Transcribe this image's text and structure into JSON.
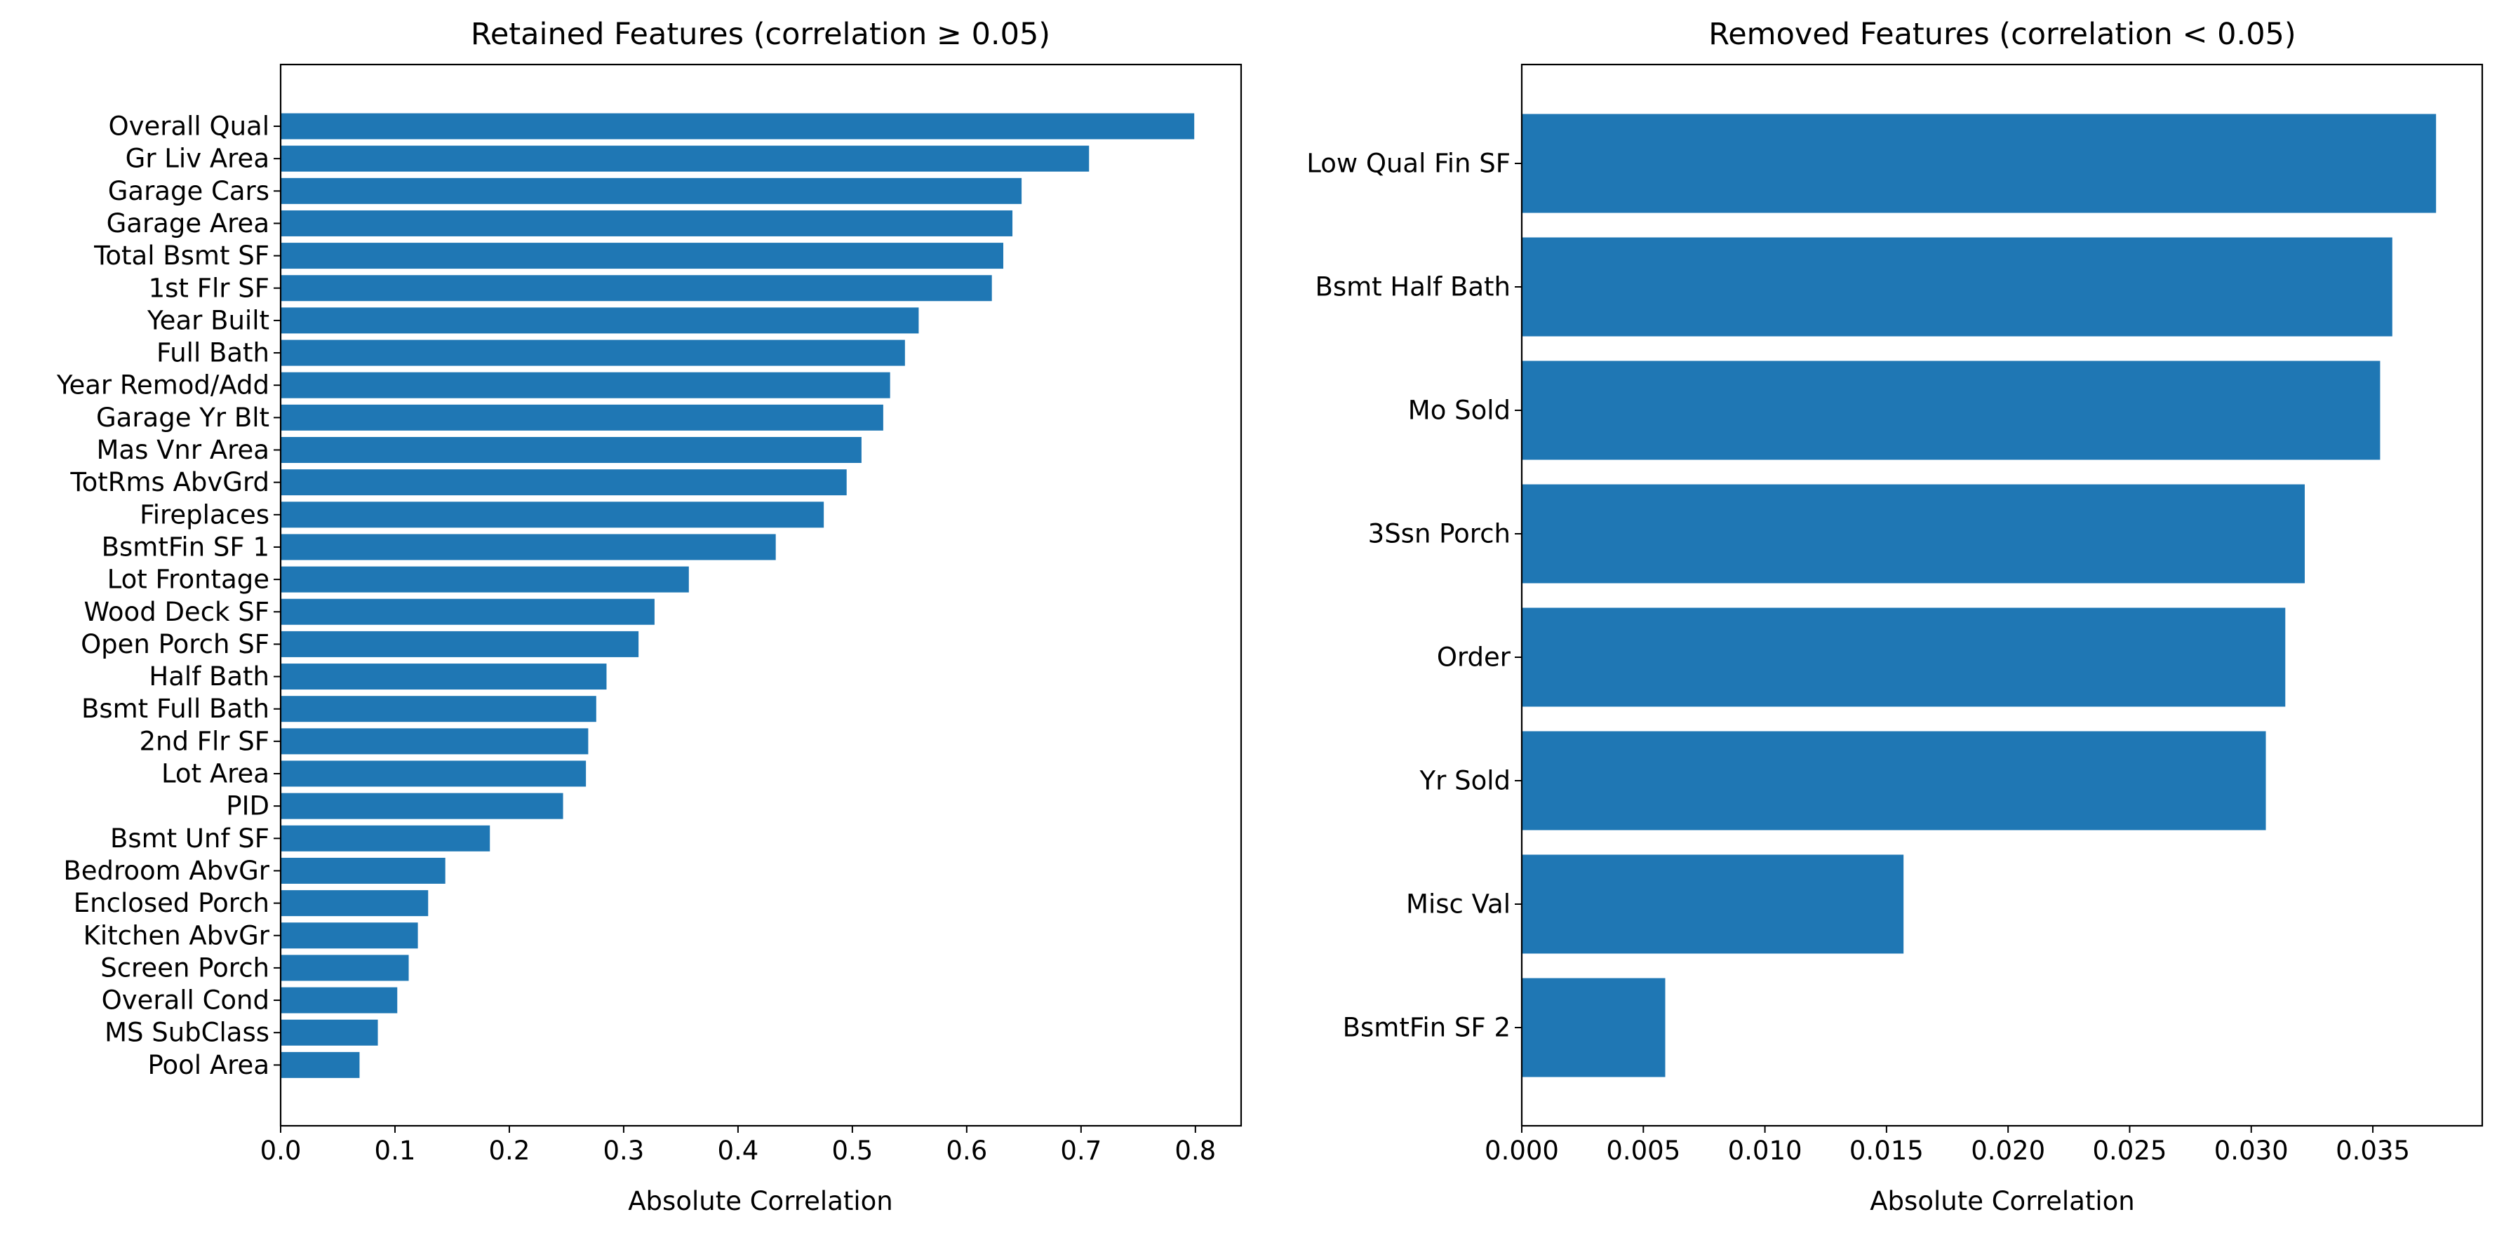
{
  "chart_data": [
    {
      "type": "bar",
      "orientation": "horizontal",
      "title": "Retained Features (correlation ≥ 0.05)",
      "xlabel": "Absolute Correlation",
      "ylabel": "",
      "xlim": [
        0,
        0.84
      ],
      "xticks": [
        "0.0",
        "0.1",
        "0.2",
        "0.3",
        "0.4",
        "0.5",
        "0.6",
        "0.7",
        "0.8"
      ],
      "bar_color": "#1f77b4",
      "grid": false,
      "categories": [
        "Overall Qual",
        "Gr Liv Area",
        "Garage Cars",
        "Garage Area",
        "Total Bsmt SF",
        "1st Flr SF",
        "Year Built",
        "Full Bath",
        "Year Remod/Add",
        "Garage Yr Blt",
        "Mas Vnr Area",
        "TotRms AbvGrd",
        "Fireplaces",
        "BsmtFin SF 1",
        "Lot Frontage",
        "Wood Deck SF",
        "Open Porch SF",
        "Half Bath",
        "Bsmt Full Bath",
        "2nd Flr SF",
        "Lot Area",
        "PID",
        "Bsmt Unf SF",
        "Bedroom AbvGr",
        "Enclosed Porch",
        "Kitchen AbvGr",
        "Screen Porch",
        "Overall Cond",
        "MS SubClass",
        "Pool Area"
      ],
      "values": [
        0.799,
        0.707,
        0.648,
        0.64,
        0.632,
        0.622,
        0.558,
        0.546,
        0.533,
        0.527,
        0.508,
        0.495,
        0.475,
        0.433,
        0.357,
        0.327,
        0.313,
        0.285,
        0.276,
        0.269,
        0.267,
        0.247,
        0.183,
        0.144,
        0.129,
        0.12,
        0.112,
        0.102,
        0.085,
        0.069
      ]
    },
    {
      "type": "bar",
      "orientation": "horizontal",
      "title": "Removed Features (correlation < 0.05)",
      "xlabel": "Absolute Correlation",
      "ylabel": "",
      "xlim": [
        0,
        0.0395
      ],
      "xticks": [
        "0.000",
        "0.005",
        "0.010",
        "0.015",
        "0.020",
        "0.025",
        "0.030",
        "0.035"
      ],
      "bar_color": "#1f77b4",
      "grid": false,
      "categories": [
        "Low Qual Fin SF",
        "Bsmt Half Bath",
        "Mo Sold",
        "3Ssn Porch",
        "Order",
        "Yr Sold",
        "Misc Val",
        "BsmtFin SF 2"
      ],
      "values": [
        0.0376,
        0.0358,
        0.0353,
        0.0322,
        0.0314,
        0.0306,
        0.0157,
        0.0059
      ]
    }
  ]
}
